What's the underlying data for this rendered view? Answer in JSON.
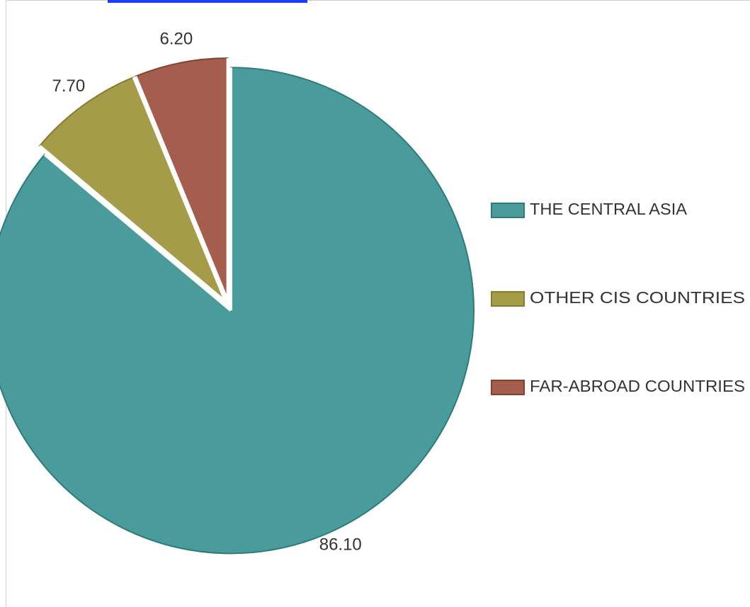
{
  "chart_data": {
    "type": "pie",
    "categories": [
      "THE CENTRAL ASIA",
      "OTHER CIS COUNTRIES",
      "FAR-ABROAD COUNTRIES"
    ],
    "values": [
      86.1,
      7.7,
      6.2
    ],
    "value_labels": [
      "86.10",
      "7.70",
      "6.20"
    ],
    "colors": [
      "#4a9c9c",
      "#a59c49",
      "#a55d4d"
    ],
    "edge_colors": [
      "#2f7b7b",
      "#857c2e",
      "#84412f"
    ],
    "start_angle_deg": 0,
    "direction": "clockwise",
    "exploded": true,
    "legend_position": "right",
    "title": ""
  }
}
